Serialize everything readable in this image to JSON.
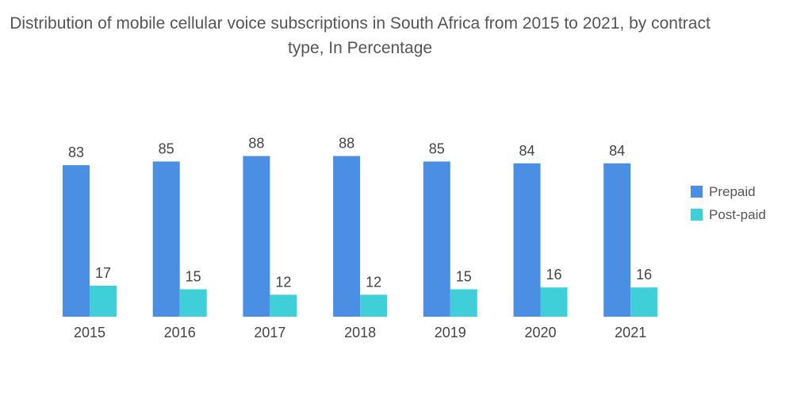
{
  "chart_data": {
    "type": "bar",
    "title": "Distribution of mobile cellular voice subscriptions in South Africa from 2015 to 2021, by contract type, In Percentage",
    "categories": [
      "2015",
      "2016",
      "2017",
      "2018",
      "2019",
      "2020",
      "2021"
    ],
    "series": [
      {
        "name": "Prepaid",
        "values": [
          83,
          85,
          88,
          88,
          85,
          84,
          84
        ],
        "color": "#4a8fe3"
      },
      {
        "name": "Post-paid",
        "values": [
          17,
          15,
          12,
          12,
          15,
          16,
          16
        ],
        "color": "#3ecfd8"
      }
    ],
    "xlabel": "",
    "ylabel": "",
    "ylim": [
      0,
      100
    ],
    "grid": false,
    "legend": "right",
    "data_labels": true
  }
}
